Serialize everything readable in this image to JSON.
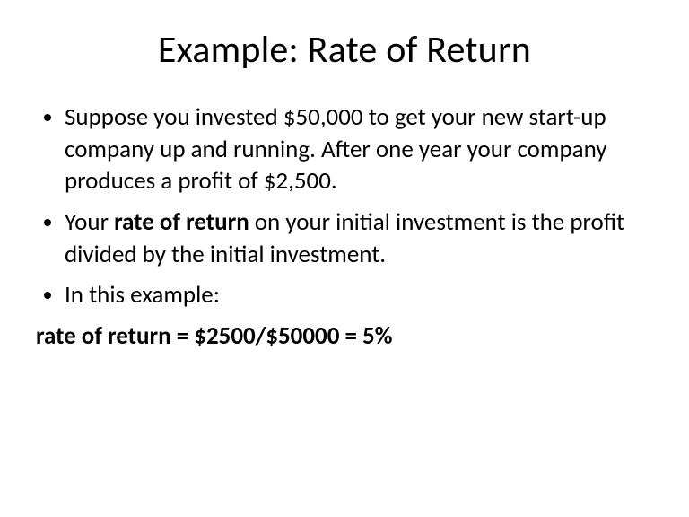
{
  "slide": {
    "title": "Example: Rate of Return",
    "title_fontsize": 42,
    "body_fontsize": 27,
    "background_color": "#ffffff",
    "text_color": "#000000",
    "bullets": [
      {
        "pre": "Suppose you invested $50,000 to get your new start-up company up and running. After one year your company produces a profit of $2,500.",
        "bold": "",
        "post": ""
      },
      {
        "pre": "Your ",
        "bold": "rate of return",
        "post": " on your initial investment is the profit divided by the initial investment."
      },
      {
        "pre": "In this example:",
        "bold": "",
        "post": ""
      }
    ],
    "conclusion": "rate of return = $2500/$50000 = 5%"
  }
}
